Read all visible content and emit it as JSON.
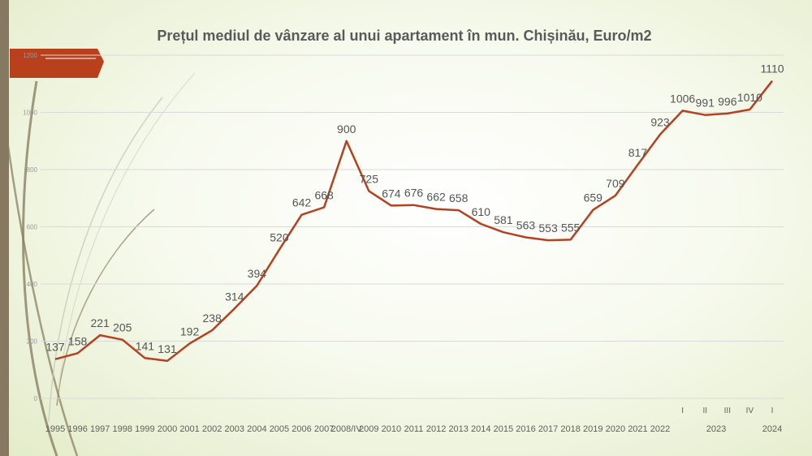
{
  "chart_data": {
    "type": "line",
    "title": "Prețul mediul de vânzare al unui apartament în mun. Chișinău, Euro/m2",
    "xlabel": "",
    "ylabel": "",
    "ylim": [
      0,
      1200
    ],
    "yticks": [
      "0",
      "200",
      "400",
      "600",
      "800",
      "1000",
      "1200"
    ],
    "grid": true,
    "line_color": "#b5411f",
    "categories": [
      "1995",
      "1996",
      "1997",
      "1998",
      "1999",
      "2000",
      "2001",
      "2002",
      "2003",
      "2004",
      "2005",
      "2006",
      "2007",
      "2008/IV",
      "2009",
      "2010",
      "2011",
      "2012",
      "2013",
      "2014",
      "2015",
      "2016",
      "2017",
      "2018",
      "2019",
      "2020",
      "2021",
      "2022",
      "I",
      "II",
      "III",
      "IV",
      "I"
    ],
    "group_labels": [
      {
        "label": "2023",
        "from": 28,
        "to": 31
      },
      {
        "label": "2024",
        "from": 32,
        "to": 32
      }
    ],
    "series": [
      {
        "values": [
          137,
          158,
          221,
          205,
          141,
          131,
          192,
          238,
          314,
          394,
          520,
          642,
          668,
          900,
          725,
          674,
          676,
          662,
          658,
          610,
          581,
          563,
          553,
          555,
          659,
          709,
          817,
          923,
          1006,
          991,
          996,
          1010,
          1110
        ]
      }
    ]
  },
  "theme": {
    "accent": "#b5411f",
    "side_bar": "#857a61"
  }
}
